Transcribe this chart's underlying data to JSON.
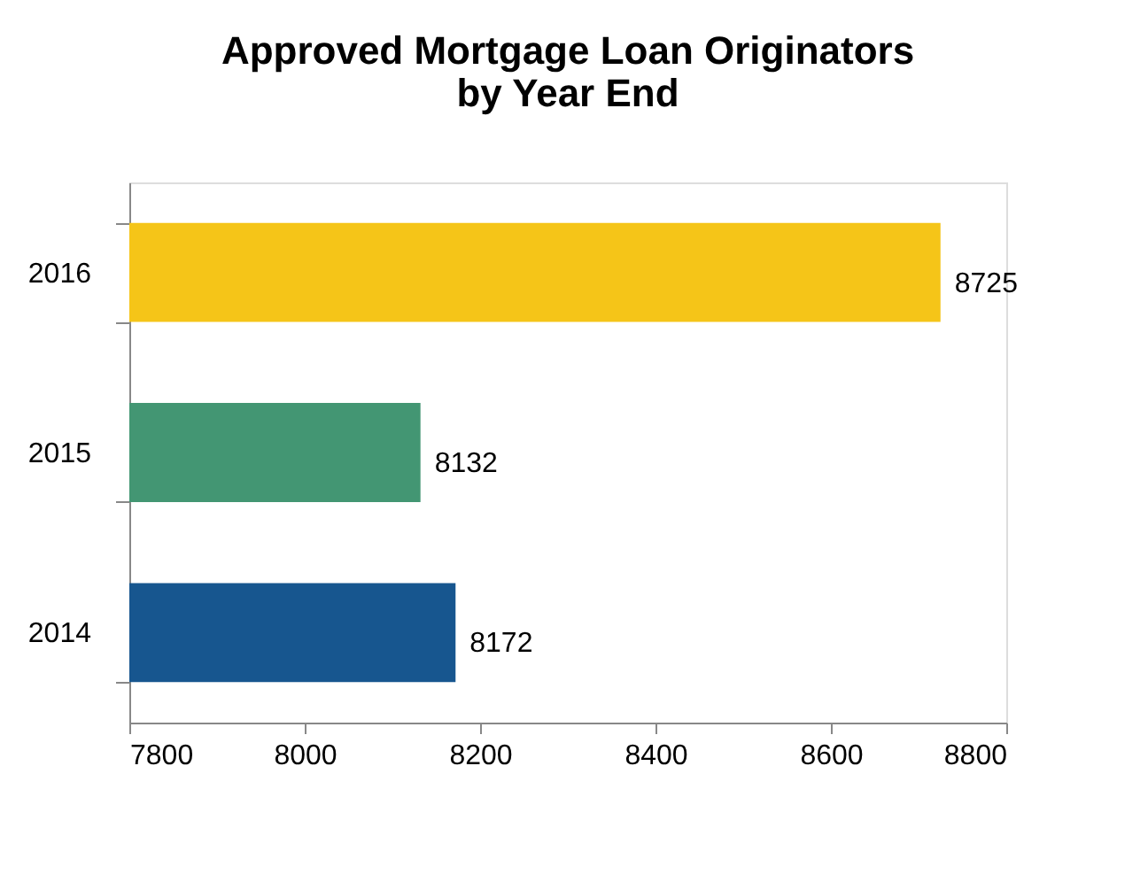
{
  "chart_data": {
    "type": "bar",
    "orientation": "horizontal",
    "title": [
      "Approved Mortgage Loan Originators",
      "by Year End"
    ],
    "categories": [
      "2016",
      "2015",
      "2014"
    ],
    "values": [
      8725,
      8132,
      8172
    ],
    "colors": [
      "#f5c518",
      "#439673",
      "#17568f"
    ],
    "xlim": [
      7800,
      8800
    ],
    "xticks": [
      7800,
      8000,
      8200,
      8400,
      8600,
      8800
    ],
    "data_labels": true,
    "grid": false
  }
}
